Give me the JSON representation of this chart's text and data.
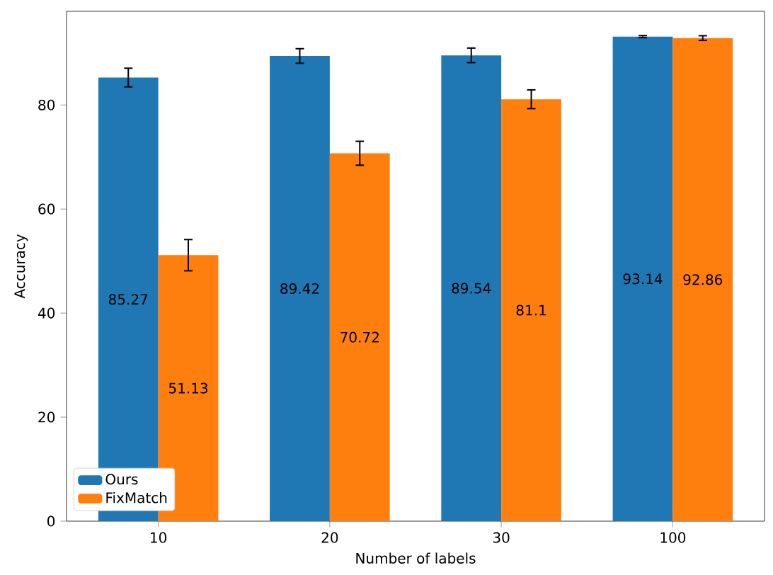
{
  "chart_data": {
    "type": "bar",
    "xlabel": "Number of labels",
    "ylabel": "Accuracy",
    "categories": [
      "10",
      "20",
      "30",
      "100"
    ],
    "series": [
      {
        "name": "Ours",
        "color": "#1f77b4",
        "values": [
          85.27,
          89.42,
          89.54,
          93.14
        ],
        "errors": [
          1.8,
          1.4,
          1.4,
          0.2
        ]
      },
      {
        "name": "FixMatch",
        "color": "#ff7f0e",
        "values": [
          51.13,
          70.72,
          81.1,
          92.86
        ],
        "errors": [
          3.0,
          2.3,
          1.8,
          0.45
        ]
      }
    ],
    "ylim": [
      0,
      98
    ],
    "yticks": [
      0,
      20,
      40,
      60,
      80
    ],
    "data_labels": true,
    "legend": "bottom left",
    "grid": false
  }
}
